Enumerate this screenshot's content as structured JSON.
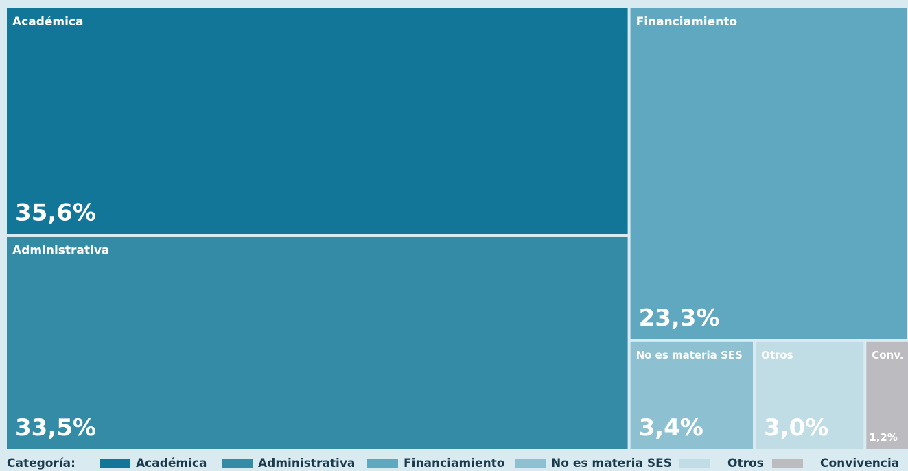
{
  "chart_data": {
    "type": "treemap",
    "categories": [
      "Académica",
      "Administrativa",
      "Financiamiento",
      "No es materia SES",
      "Otros",
      "Convivencia"
    ],
    "tile_labels": [
      "Académica",
      "Administrativa",
      "Financiamiento",
      "No es materia SES",
      "Otros",
      "Conv."
    ],
    "values": [
      35.6,
      33.5,
      23.3,
      3.4,
      3.0,
      1.2
    ],
    "value_labels": [
      "35,6%",
      "33,5%",
      "23,3%",
      "3,4%",
      "3,0%",
      "1,2%"
    ],
    "colors": [
      "#127699",
      "#338ba6",
      "#5fa8bf",
      "#8dc1d1",
      "#c0dde6",
      "#bcbcc0"
    ],
    "legend_title": "Categoría:"
  }
}
